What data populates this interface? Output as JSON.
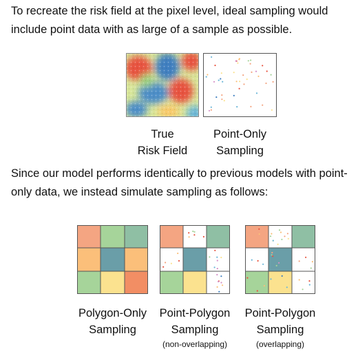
{
  "intro_text": "To recreate the risk field at the pixel level, ideal sampling would include point data with as large of a sample as possible.",
  "middle_text": "Since our model performs identically to previous models with point-only data, we instead simulate sampling as follows:",
  "panels": {
    "true_risk": {
      "label_line1": "True",
      "label_line2": "Risk Field"
    },
    "point_only": {
      "label_line1": "Point-Only",
      "label_line2": "Sampling"
    },
    "polygon_only": {
      "label_line1": "Polygon-Only",
      "label_line2": "Sampling"
    },
    "point_polygon_nonoverlap": {
      "label_line1": "Point-Polygon",
      "label_line2": "Sampling",
      "note": "(non-overlapping)"
    },
    "point_polygon_overlap": {
      "label_line1": "Point-Polygon",
      "label_line2": "Sampling",
      "note": "(overlapping)"
    }
  },
  "colors": {
    "orange": "#f4a582",
    "green": "#a6d49a",
    "teal": "#8fbfa4",
    "light_orange": "#fbbf7a",
    "blue_teal": "#6a9ea8",
    "yellow": "#fbe28f",
    "deep_orange": "#f28e64",
    "grid_line": "#555555"
  }
}
